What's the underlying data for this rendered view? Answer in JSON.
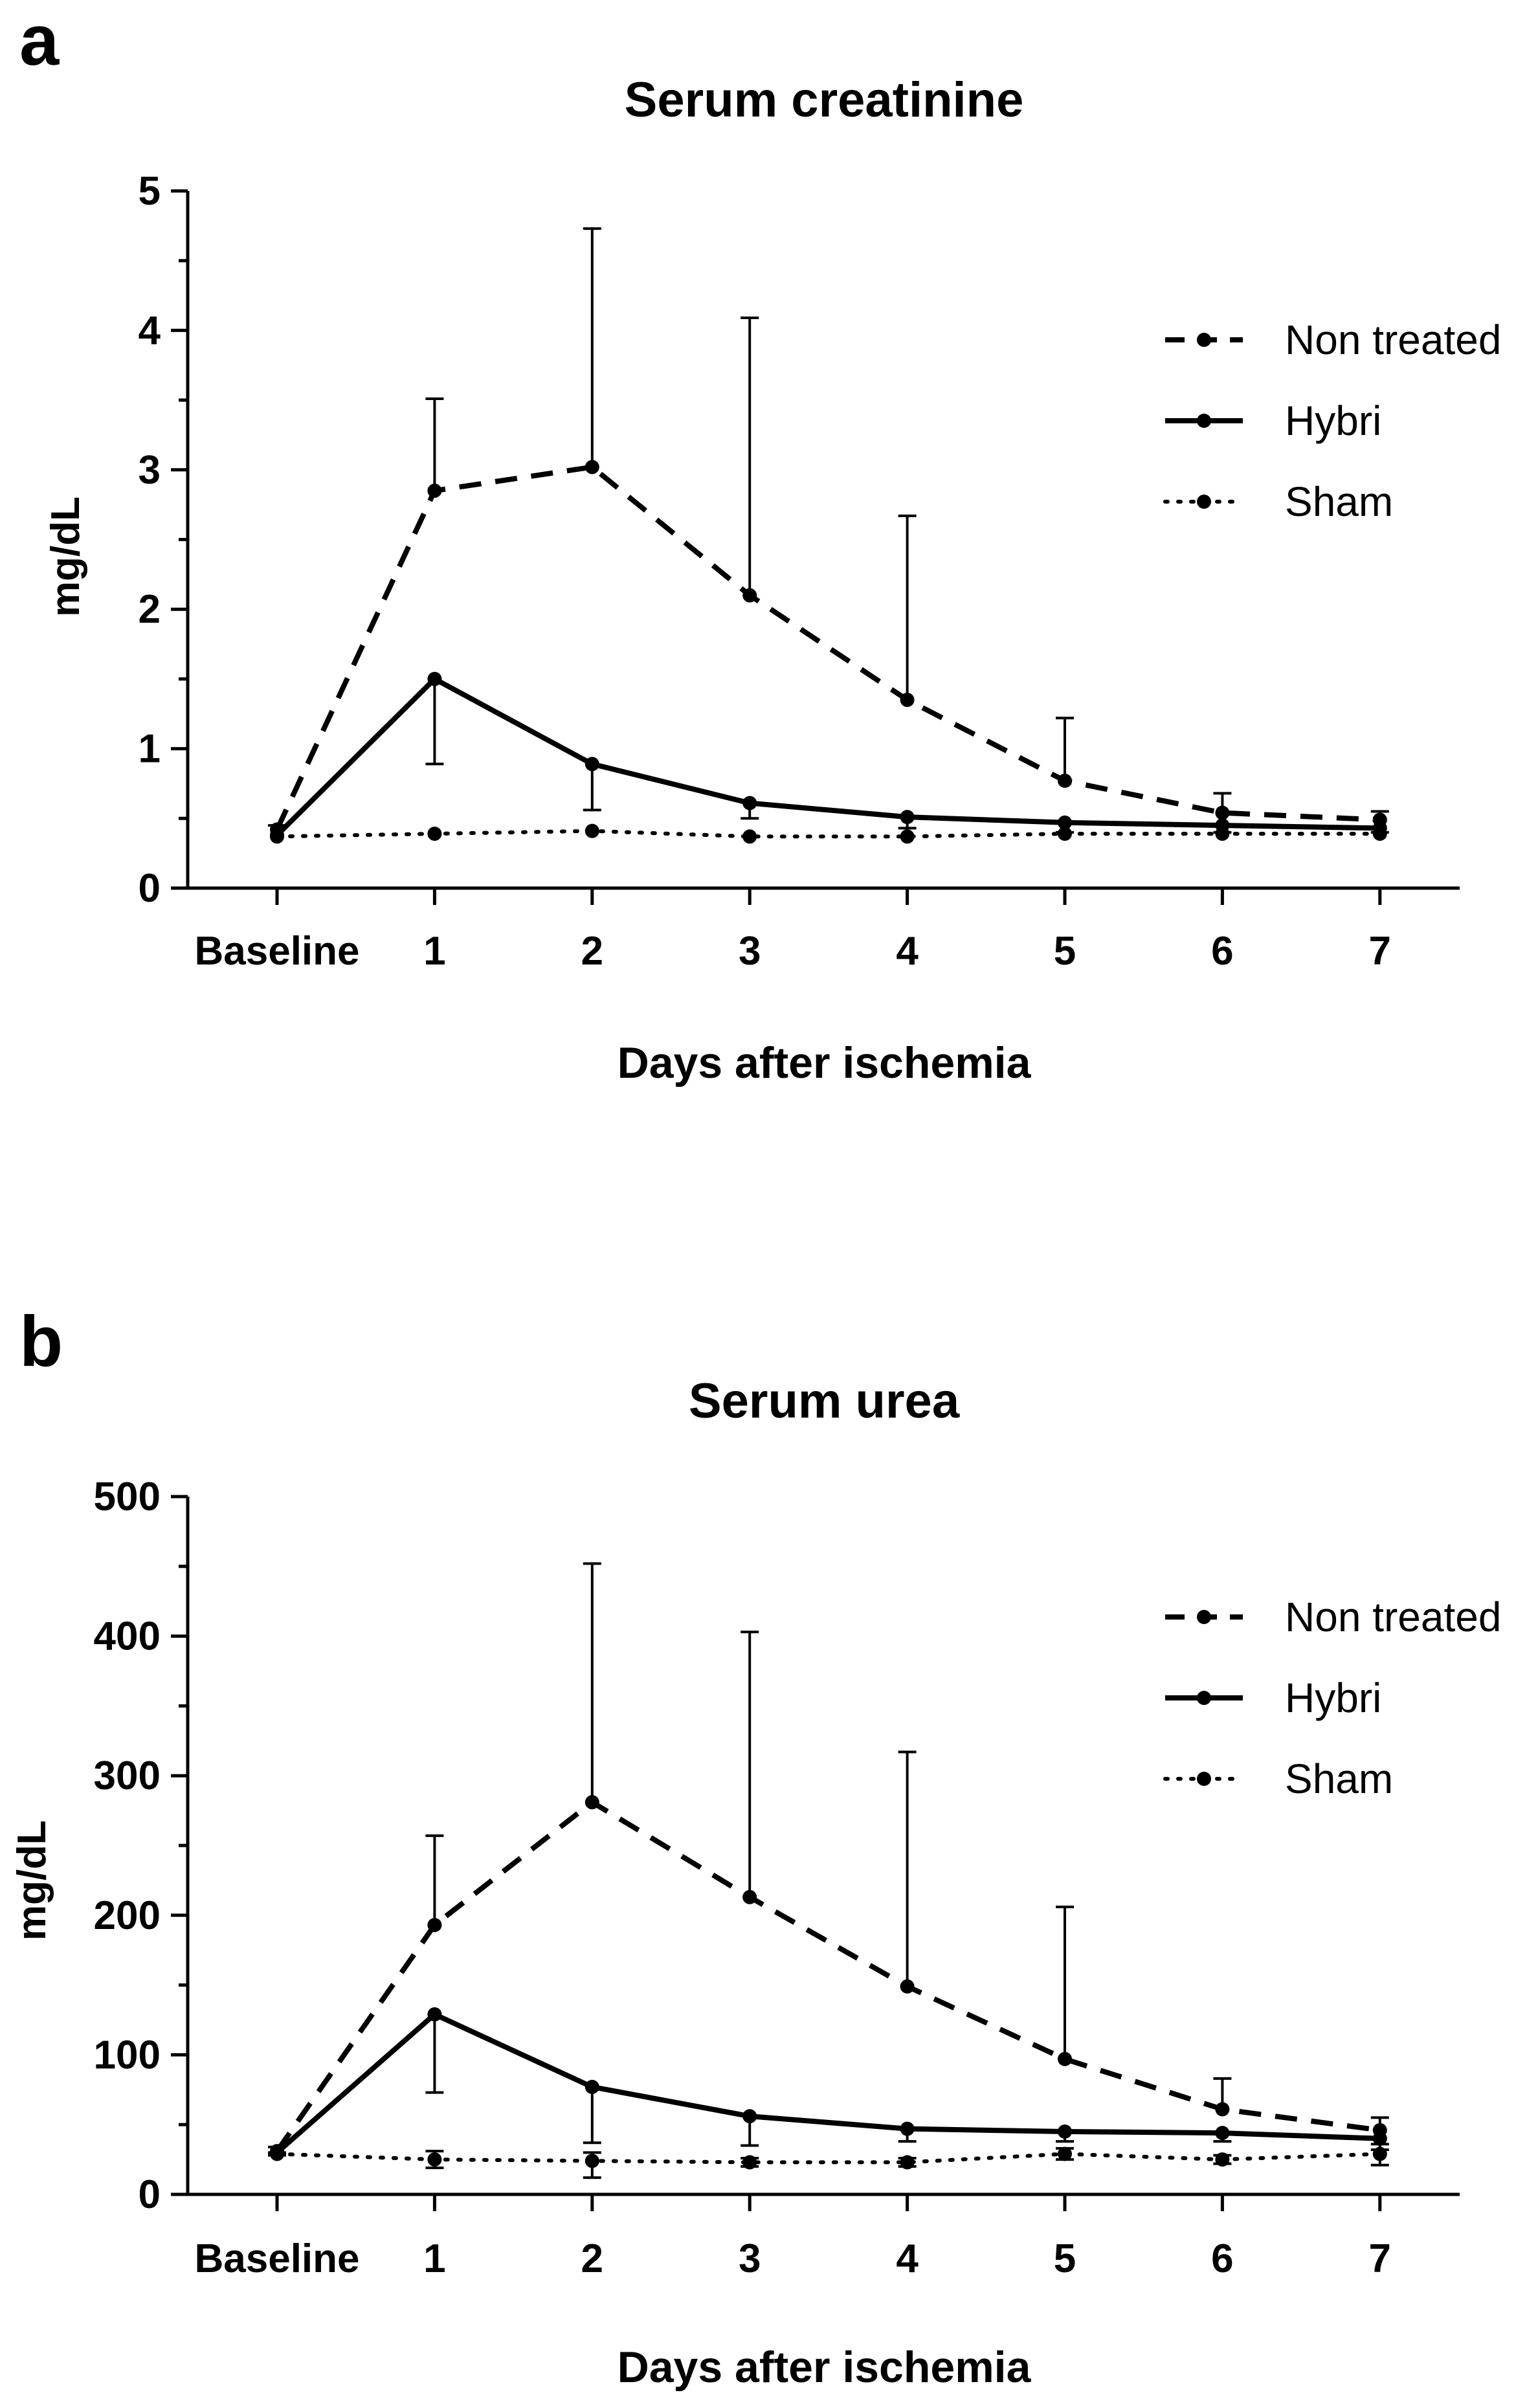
{
  "chart_data": [
    {
      "panel": "a",
      "type": "line",
      "title": "Serum creatinine",
      "xlabel": "Days after ischemia",
      "ylabel": "mg/dL",
      "categories": [
        "Baseline",
        "1",
        "2",
        "3",
        "4",
        "5",
        "6",
        "7"
      ],
      "ylim": [
        0,
        5
      ],
      "yticks": [
        "0",
        "1",
        "2",
        "3",
        "4",
        "5"
      ],
      "legend_position": "top-right",
      "series": [
        {
          "name": "Non treated",
          "style": "dashed",
          "values": [
            0.42,
            2.85,
            3.02,
            2.1,
            1.35,
            0.77,
            0.54,
            0.49
          ],
          "error_upper": [
            0.45,
            3.51,
            4.73,
            4.09,
            2.67,
            1.22,
            0.68,
            0.55
          ]
        },
        {
          "name": "Hybri",
          "style": "solid",
          "values": [
            0.38,
            1.5,
            0.89,
            0.61,
            0.51,
            0.47,
            0.45,
            0.43
          ],
          "error_lower": [
            0.38,
            0.89,
            0.56,
            0.5,
            0.43,
            0.4,
            0.4,
            0.4
          ]
        },
        {
          "name": "Sham",
          "style": "dotted",
          "values": [
            0.37,
            0.39,
            0.41,
            0.37,
            0.37,
            0.39,
            0.39,
            0.39
          ]
        }
      ]
    },
    {
      "panel": "b",
      "type": "line",
      "title": "Serum urea",
      "xlabel": "Days after ischemia",
      "ylabel": "mg/dL",
      "categories": [
        "Baseline",
        "1",
        "2",
        "3",
        "4",
        "5",
        "6",
        "7"
      ],
      "ylim": [
        0,
        500
      ],
      "yticks": [
        "0",
        "100",
        "200",
        "300",
        "400",
        "500"
      ],
      "legend_position": "top-right",
      "series": [
        {
          "name": "Non treated",
          "style": "dashed",
          "values": [
            31,
            193,
            281,
            213,
            149,
            97,
            61,
            46
          ],
          "error_upper": [
            34,
            257,
            452,
            403,
            317,
            206,
            83,
            55
          ]
        },
        {
          "name": "Hybri",
          "style": "solid",
          "values": [
            30,
            129,
            77,
            56,
            47,
            45,
            44,
            40
          ],
          "error_lower": [
            29,
            73,
            37,
            35,
            38,
            38,
            38,
            32
          ]
        },
        {
          "name": "Sham",
          "style": "dotted",
          "values": [
            29,
            25,
            24,
            23,
            23,
            29,
            25,
            29
          ],
          "error_lower": [
            28,
            19,
            12,
            20,
            20,
            25,
            22,
            21
          ],
          "error_upper": [
            30,
            31,
            30,
            26,
            26,
            33,
            28,
            36
          ]
        }
      ]
    }
  ]
}
